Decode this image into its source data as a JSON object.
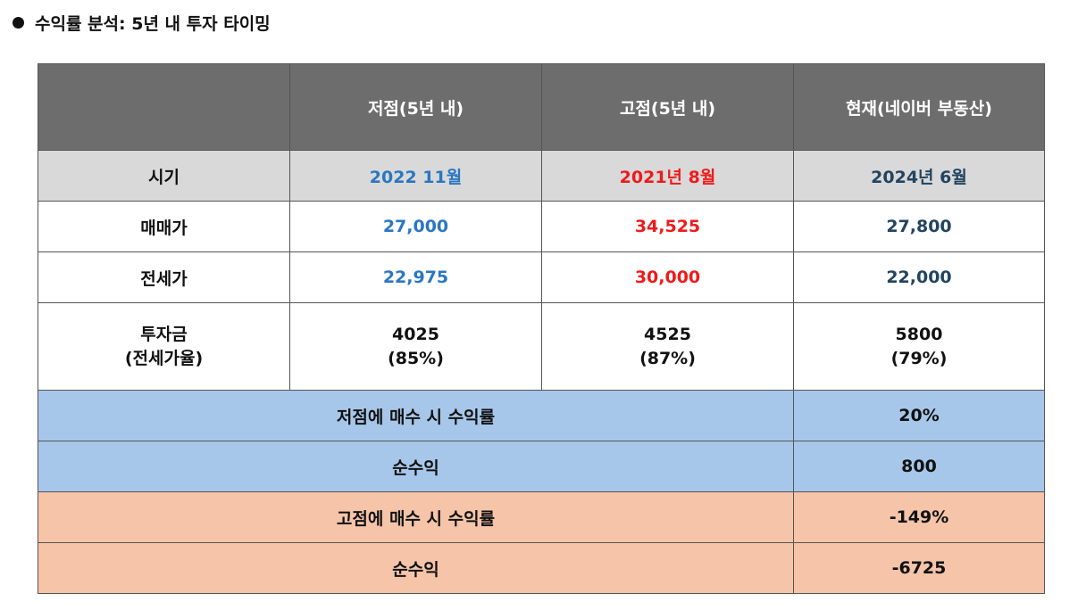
{
  "heading": {
    "title": "수익률 분석: 5년 내 투자 타이밍"
  },
  "table": {
    "header": [
      "",
      "저점(5년 내)",
      "고점(5년 내)",
      "현재(네이버 부동산)"
    ],
    "rows": [
      {
        "label": "시기",
        "low": "2022 11월",
        "high": "2021년 8월",
        "now": "2024년 6월"
      },
      {
        "label": "매매가",
        "low": "27,000",
        "high": "34,525",
        "now": "27,800"
      },
      {
        "label": "전세가",
        "low": "22,975",
        "high": "30,000",
        "now": "22,000"
      },
      {
        "label_line1": "투자금",
        "label_line2": "(전세가율)",
        "low_line1": "4025",
        "low_line2": "(85%)",
        "high_line1": "4525",
        "high_line2": "(87%)",
        "now_line1": "5800",
        "now_line2": "(79%)"
      }
    ],
    "summary": [
      {
        "label": "저점에 매수 시 수익률",
        "value": "20%"
      },
      {
        "label": "순수익",
        "value": "800"
      },
      {
        "label": "고점에 매수 시 수익률",
        "value": "-149%"
      },
      {
        "label": "순수익",
        "value": "-6725"
      }
    ]
  },
  "colors": {
    "header_bg": "#6d6d6d",
    "row_gray_bg": "#d9d9d9",
    "summary_blue_bg": "#a7c7ea",
    "summary_salmon_bg": "#f5c4a9",
    "low_text": "#2a77c2",
    "high_text": "#ee1b1b",
    "now_text": "#23445f"
  }
}
